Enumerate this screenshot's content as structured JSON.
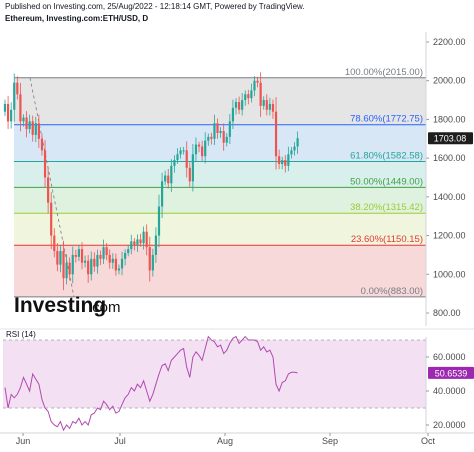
{
  "header": {
    "published": "Published on Investing.com, 25/Aug/2022 - 12:18:14 GMT, Powered by TradingView.",
    "symbol": "Ethereum, Investing.com:ETH/USD, D"
  },
  "logo": {
    "main": "Investing",
    "suffix": ".com"
  },
  "colors": {
    "up": "#26a69a",
    "down": "#ef5350",
    "price_badge": "#1e1e1e",
    "rsi_line": "#b04ab0",
    "rsi_badge": "#9c27b0"
  },
  "chart_data": [
    {
      "type": "candlestick",
      "symbol": "Ethereum, Investing.com:ETH/USD, D",
      "x_ticks": [
        "Jun",
        "Jul",
        "Aug",
        "Sep",
        "Oct"
      ],
      "y_ticks": [
        800,
        1000,
        1200,
        1400,
        1600,
        1800,
        2000,
        2200
      ],
      "y_tick_labels": [
        "800.00",
        "1000.00",
        "1200.00",
        "1400.00",
        "1600.00",
        "1800.00",
        "2000.00",
        "2200.00"
      ],
      "ylim": [
        760,
        2250
      ],
      "last_price": 1703.08,
      "last_price_label": "1703.08",
      "fib_levels": [
        {
          "ratio": "100.00%",
          "label": "100.00%(2015.00)",
          "value": 2015.0,
          "color": "#787b86",
          "fill": "#dcdcdc"
        },
        {
          "ratio": "78.60%",
          "label": "78.60%(1772.75)",
          "value": 1772.75,
          "color": "#2962ff",
          "fill": "#c9dff1"
        },
        {
          "ratio": "61.80%",
          "label": "61.80%(1582.58)",
          "value": 1582.58,
          "color": "#26a69a",
          "fill": "#cbe9e4"
        },
        {
          "ratio": "50.00%",
          "label": "50.00%(1449.00)",
          "value": 1449.0,
          "color": "#43a047",
          "fill": "#d4ecd4"
        },
        {
          "ratio": "38.20%",
          "label": "38.20%(1315.42)",
          "value": 1315.42,
          "color": "#9acd32",
          "fill": "#eaf3d2"
        },
        {
          "ratio": "23.60%",
          "label": "23.60%(1150.15)",
          "value": 1150.15,
          "color": "#e53935",
          "fill": "#f4cccc"
        },
        {
          "ratio": "0.00%",
          "label": "0.00%(883.00)",
          "value": 883.0,
          "color": "#787b86",
          "fill": null
        }
      ],
      "closes": [
        1880,
        1790,
        1850,
        1990,
        1930,
        1790,
        1810,
        1750,
        1790,
        1720,
        1780,
        1700,
        1640,
        1500,
        1370,
        1200,
        1120,
        1050,
        1120,
        980,
        1060,
        1000,
        1100,
        1090,
        1130,
        1060,
        1070,
        1000,
        1080,
        1040,
        1100,
        1080,
        1140,
        1100,
        1060,
        1080,
        1020,
        1030,
        1080,
        1110,
        1130,
        1170,
        1150,
        1180,
        1160,
        1220,
        1140,
        1020,
        1100,
        1200,
        1350,
        1480,
        1510,
        1470,
        1560,
        1590,
        1620,
        1640,
        1640,
        1550,
        1480,
        1620,
        1670,
        1660,
        1610,
        1690,
        1710,
        1700,
        1780,
        1730,
        1740,
        1680,
        1710,
        1790,
        1860,
        1890,
        1850,
        1900,
        1930,
        1910,
        1950,
        2000,
        1990,
        1870,
        1900,
        1850,
        1880,
        1840,
        1610,
        1570,
        1590,
        1560,
        1620,
        1640,
        1660,
        1703
      ]
    },
    {
      "type": "line",
      "title": "RSI (14)",
      "y_ticks": [
        20,
        40,
        60
      ],
      "y_tick_labels": [
        "20.0000",
        "40.0000",
        "60.0000"
      ],
      "ylim": [
        14,
        74
      ],
      "levels": [
        70,
        30
      ],
      "last_value": 50.6539,
      "last_value_label": "50.6539",
      "values": [
        42,
        30,
        38,
        36,
        38,
        42,
        48,
        44,
        40,
        50,
        47,
        44,
        35,
        30,
        28,
        22,
        20,
        19,
        22,
        17,
        20,
        18,
        22,
        21,
        24,
        20,
        22,
        20,
        26,
        27,
        30,
        29,
        34,
        32,
        29,
        31,
        27,
        28,
        32,
        36,
        38,
        42,
        40,
        44,
        42,
        46,
        40,
        34,
        38,
        44,
        50,
        55,
        56,
        52,
        58,
        60,
        62,
        64,
        65,
        54,
        48,
        60,
        63,
        61,
        58,
        65,
        72,
        70,
        69,
        66,
        67,
        62,
        64,
        68,
        71,
        72,
        68,
        70,
        72,
        70,
        70,
        70,
        69,
        64,
        66,
        63,
        64,
        60,
        44,
        40,
        45,
        46,
        50,
        51,
        51,
        50.6539
      ]
    }
  ]
}
